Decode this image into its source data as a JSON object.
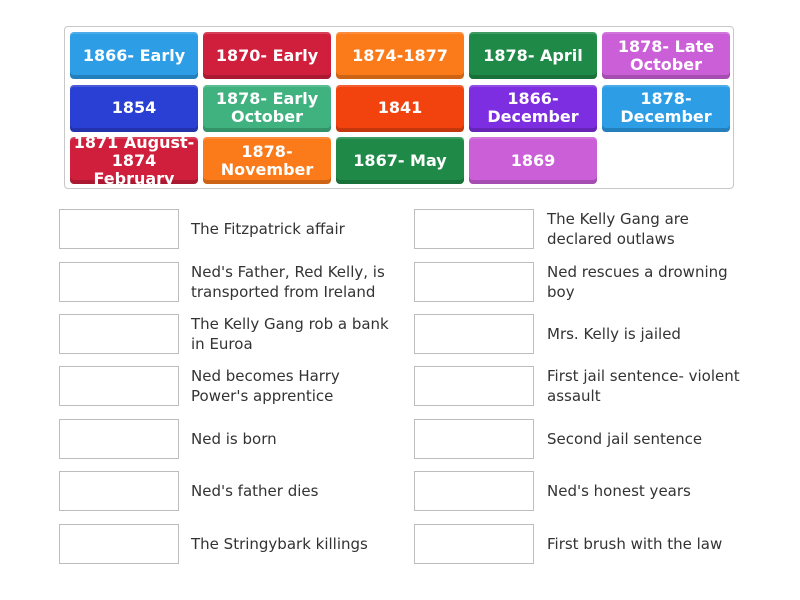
{
  "tiles": [
    {
      "label": "1866- Early",
      "color": "#2d9de6"
    },
    {
      "label": "1870- Early",
      "color": "#d01f3c"
    },
    {
      "label": "1874-1877",
      "color": "#fb7a1a"
    },
    {
      "label": "1878- April",
      "color": "#1f8a47"
    },
    {
      "label": "1878- Late October",
      "color": "#cb5fd8"
    },
    {
      "label": "1854",
      "color": "#2a3fd4"
    },
    {
      "label": "1878- Early October",
      "color": "#3fb27f"
    },
    {
      "label": "1841",
      "color": "#f2430f"
    },
    {
      "label": "1866- December",
      "color": "#7d2ee0"
    },
    {
      "label": "1878- December",
      "color": "#2d9de6"
    },
    {
      "label": "1871 August- 1874 February",
      "color": "#d01f3c"
    },
    {
      "label": "1878- November",
      "color": "#fb7a1a"
    },
    {
      "label": "1867- May",
      "color": "#1f8a47"
    },
    {
      "label": "1869",
      "color": "#cb5fd8"
    }
  ],
  "left_clues": [
    "The Fitzpatrick affair",
    "Ned's Father, Red Kelly, is transported from Ireland",
    "The Kelly Gang rob a bank in Euroa",
    "Ned becomes Harry Power's apprentice",
    "Ned is born",
    "Ned's father dies",
    "The Stringybark killings"
  ],
  "right_clues": [
    "The Kelly Gang are declared outlaws",
    "Ned rescues a drowning boy",
    "Mrs. Kelly is jailed",
    "First jail sentence- violent assault",
    "Second jail sentence",
    "Ned's honest years",
    "First brush with the law"
  ]
}
